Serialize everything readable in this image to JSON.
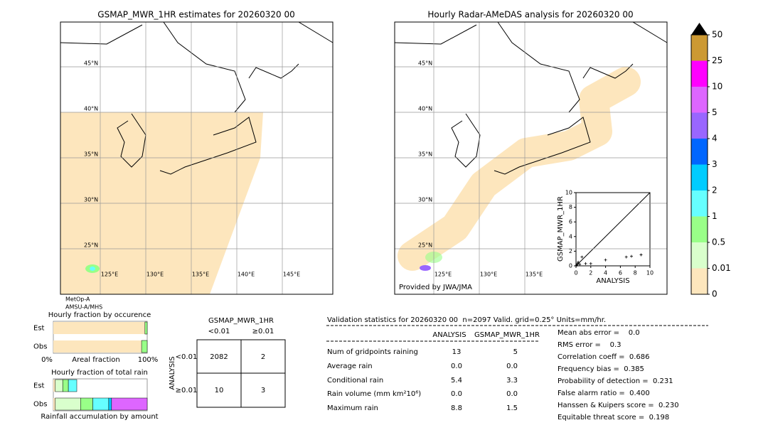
{
  "left_map": {
    "title": "GSMAP_MWR_1HR estimates for 20260320 00",
    "lat_labels": [
      "45°N",
      "40°N",
      "35°N",
      "30°N",
      "25°N"
    ],
    "lon_labels": [
      "125°E",
      "130°E",
      "135°E",
      "140°E",
      "145°E"
    ],
    "satellites": [
      "MetOp-A",
      "AMSU-A/MHS"
    ]
  },
  "right_map": {
    "title": "Hourly Radar-AMeDAS analysis for 20260320 00",
    "lat_labels": [
      "45°N",
      "40°N",
      "35°N",
      "30°N",
      "25°N"
    ],
    "lon_labels": [
      "125°E",
      "130°E",
      "135°E"
    ],
    "credit": "Provided by JWA/JMA"
  },
  "colorbar": {
    "levels": [
      0,
      0.01,
      0.5,
      1,
      2,
      3,
      4,
      5,
      10,
      25,
      50
    ],
    "colors": [
      "#fde6bd",
      "#d9ffcc",
      "#99ff88",
      "#66ffff",
      "#00ccff",
      "#0066ff",
      "#9966ff",
      "#dd66ff",
      "#ff00ff",
      "#cc9933"
    ]
  },
  "scatter": {
    "type": "scatter",
    "x_label": "ANALYSIS",
    "y_label": "GSMAP_MWR_1HR",
    "xlim": [
      0,
      10
    ],
    "ylim": [
      0,
      10
    ],
    "xticks": [
      0,
      2,
      4,
      6,
      8,
      10
    ],
    "yticks": [
      0,
      2,
      4,
      6,
      8,
      10
    ],
    "x": [
      0.1,
      0.2,
      0.3,
      0.5,
      0.8,
      1.3,
      2.0,
      4.0,
      6.8,
      7.5,
      8.8
    ],
    "y": [
      0.1,
      0.3,
      0.5,
      0.2,
      1.2,
      0.3,
      0.3,
      0.8,
      1.2,
      1.3,
      1.5
    ]
  },
  "occurrence": {
    "title": "Hourly fraction by occurence",
    "rows": [
      "Est",
      "Obs"
    ],
    "axis_labels": [
      "0%",
      "Areal fraction",
      "100%"
    ],
    "est": [
      0.976,
      0.024
    ],
    "obs": [
      0.94,
      0.06
    ],
    "colors": [
      "#fde6bd",
      "#99ff88"
    ]
  },
  "total_rain": {
    "title": "Hourly fraction of total rain",
    "rows": [
      "Est",
      "Obs"
    ],
    "footer": "Rainfall accumulation by amount",
    "est": [
      0.02,
      0.08,
      0.06,
      0.09
    ],
    "obs": [
      0.02,
      0.27,
      0.13,
      0.17,
      0.03,
      0.38
    ],
    "est_colors": [
      "#fde6bd",
      "#d9ffcc",
      "#99ff88",
      "#66ffff"
    ],
    "obs_colors": [
      "#fde6bd",
      "#d9ffcc",
      "#99ff88",
      "#66ffff",
      "#00ccff",
      "#dd66ff"
    ]
  },
  "contingency": {
    "title": "GSMAP_MWR_1HR",
    "col_headers": [
      "<0.01",
      "≥0.01"
    ],
    "row_axis": "ANALYSIS",
    "row_headers": [
      "<0.01",
      "≥0.01"
    ],
    "cells": [
      [
        "2082",
        "2"
      ],
      [
        "10",
        "3"
      ]
    ]
  },
  "validation": {
    "header": "Validation statistics for 20260320 00  n=2097 Valid. grid=0.25° Units=mm/hr.",
    "columns": [
      "ANALYSIS",
      "GSMAP_MWR_1HR"
    ],
    "rows": [
      {
        "label": "Num of gridpoints raining",
        "values": [
          "13",
          "5"
        ]
      },
      {
        "label": "Average rain",
        "values": [
          "0.0",
          "0.0"
        ]
      },
      {
        "label": "Conditional rain",
        "values": [
          "5.4",
          "3.3"
        ]
      },
      {
        "label": "Rain volume (mm km²10⁶)",
        "values": [
          "0.0",
          "0.0"
        ]
      },
      {
        "label": "Maximum rain",
        "values": [
          "8.8",
          "1.5"
        ]
      }
    ],
    "scores": [
      "Mean abs error =    0.0",
      "RMS error =    0.3",
      "Correlation coeff =  0.686",
      "Frequency bias =  0.385",
      "Probability of detection =  0.231",
      "False alarm ratio =  0.400",
      "Hanssen & Kuipers score =  0.230",
      "Equitable threat score =  0.198"
    ]
  }
}
